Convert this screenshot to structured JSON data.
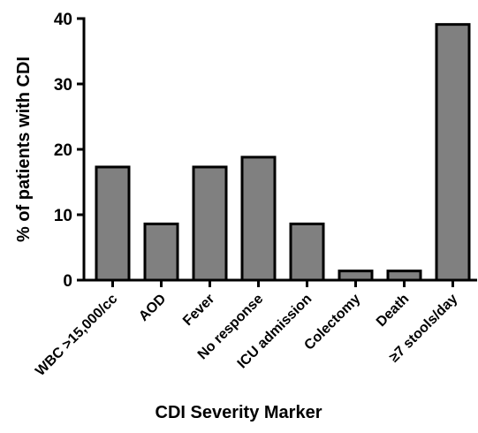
{
  "chart_data": {
    "type": "bar",
    "categories": [
      "WBC >15,000/cc",
      "AOD",
      "Fever",
      "No response",
      "ICU admission",
      "Colectomy",
      "Death",
      "≥7 stools/day"
    ],
    "values": [
      17.3,
      8.6,
      17.3,
      18.8,
      8.6,
      1.4,
      1.4,
      39.1
    ],
    "xlabel": "CDI  Severity Marker",
    "ylabel": "% of patients with CDI",
    "ylim": [
      0,
      40
    ],
    "yticks": [
      0,
      10,
      20,
      30,
      40
    ],
    "grid": false,
    "legend": "none",
    "bar_color": "#808080",
    "edge_color": "#000000"
  }
}
